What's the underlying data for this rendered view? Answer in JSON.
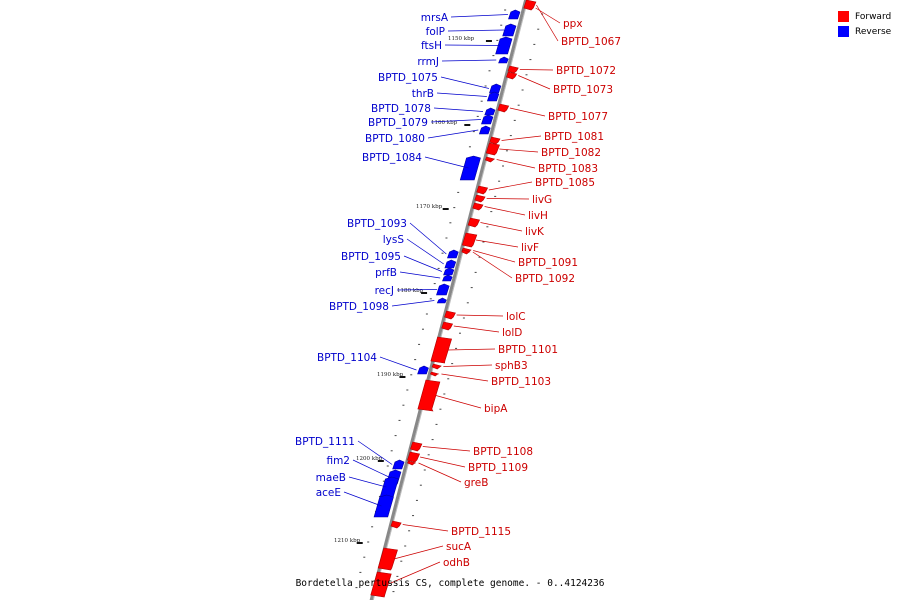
{
  "legend": {
    "forward_label": "Forward",
    "reverse_label": "Reverse",
    "forward_color": "#ff0000",
    "reverse_color": "#0000ff"
  },
  "caption": "Bordetella pertussis CS, complete genome. - 0..4124236",
  "colors": {
    "backbone": "#888888",
    "tick": "#111111"
  },
  "kbp_labels": [
    "1150 kbp",
    "1160 kbp",
    "1170 kbp",
    "1180 kbp",
    "1190 kbp",
    "1200 kbp",
    "1210 kbp"
  ],
  "genes_forward": [
    "ppx",
    "BPTD_1067",
    "BPTD_1072",
    "BPTD_1073",
    "BPTD_1077",
    "BPTD_1081",
    "BPTD_1082",
    "BPTD_1083",
    "BPTD_1085",
    "livG",
    "livH",
    "livK",
    "livF",
    "BPTD_1091",
    "BPTD_1092",
    "lolC",
    "lolD",
    "BPTD_1101",
    "sphB3",
    "BPTD_1103",
    "bipA",
    "BPTD_1108",
    "BPTD_1109",
    "greB",
    "BPTD_1115",
    "sucA",
    "odhB"
  ],
  "genes_reverse": [
    "mrsA",
    "folP",
    "ftsH",
    "rrmJ",
    "BPTD_1075",
    "thrB",
    "BPTD_1078",
    "BPTD_1079",
    "BPTD_1080",
    "BPTD_1084",
    "BPTD_1093",
    "lysS",
    "BPTD_1095",
    "prfB",
    "recJ",
    "BPTD_1098",
    "BPTD_1104",
    "BPTD_1111",
    "fim2",
    "maeB",
    "aceE"
  ]
}
